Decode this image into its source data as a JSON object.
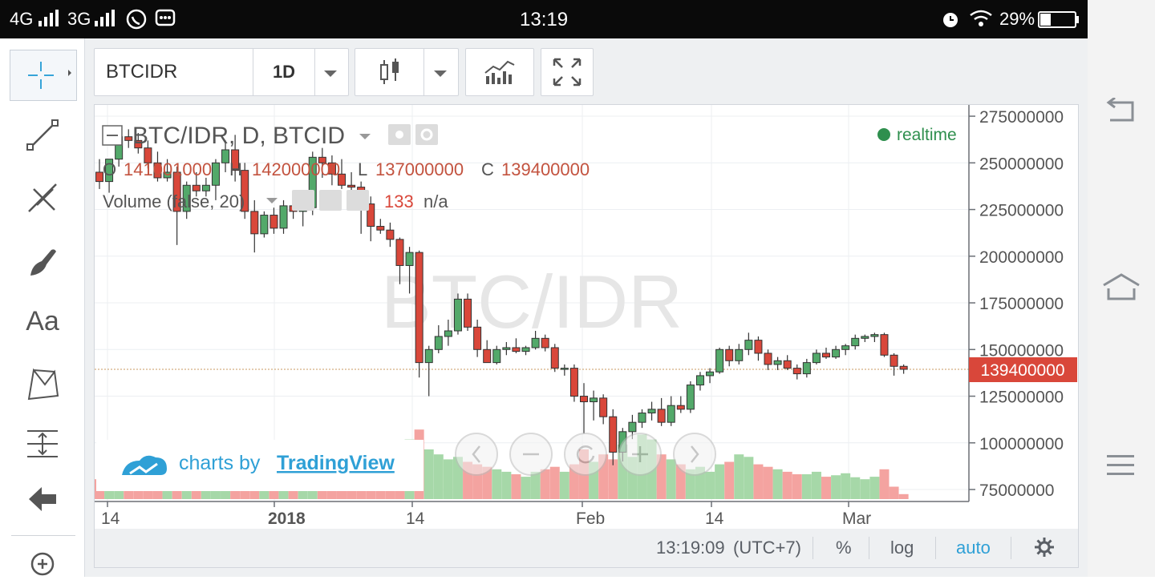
{
  "status_bar": {
    "network1": "4G",
    "network2": "3G",
    "time": "13:19",
    "battery": "29%"
  },
  "toolbar": {
    "symbol": "BTCIDR",
    "interval": "1D"
  },
  "legend": {
    "title": "BTC/IDR, D, BTCID",
    "o_label": "O",
    "o_value": "141001000",
    "h_label": "H",
    "h_value": "142000000",
    "l_label": "L",
    "l_value": "137000000",
    "c_label": "C",
    "c_value": "139400000",
    "volume_label": "Volume (false, 20)",
    "volume_value": "133",
    "volume_na": "n/a",
    "realtime": "realtime"
  },
  "watermark": "BTC/IDR",
  "branding": {
    "prefix": "charts by",
    "name": "TradingView"
  },
  "price_axis": {
    "ticks": [
      "275000000",
      "250000000",
      "225000000",
      "200000000",
      "175000000",
      "150000000",
      "125000000",
      "100000000",
      "75000000"
    ],
    "current_price": "139400000"
  },
  "time_axis": {
    "labels": [
      "14",
      "2018",
      "14",
      "Feb",
      "14",
      "Mar"
    ]
  },
  "footer": {
    "time": "13:19:09",
    "tz": "(UTC+7)",
    "percent": "%",
    "log": "log",
    "auto": "auto"
  },
  "colors": {
    "up": "#53a96a",
    "down": "#d9473a",
    "up_vol": "#a6d8a8",
    "down_vol": "#f4a3a0",
    "accent": "#2fa0d6"
  },
  "chart_data": {
    "type": "candlestick",
    "title": "BTC/IDR, D, BTCID",
    "ylabel": "",
    "ylim": [
      70000000,
      280000000
    ],
    "candles": [
      {
        "o": 245,
        "h": 252,
        "l": 236,
        "c": 240
      },
      {
        "o": 240,
        "h": 250,
        "l": 234,
        "c": 252
      },
      {
        "o": 252,
        "h": 268,
        "l": 248,
        "c": 264
      },
      {
        "o": 264,
        "h": 268,
        "l": 258,
        "c": 262
      },
      {
        "o": 262,
        "h": 266,
        "l": 255,
        "c": 258
      },
      {
        "o": 258,
        "h": 262,
        "l": 247,
        "c": 250
      },
      {
        "o": 250,
        "h": 256,
        "l": 240,
        "c": 242
      },
      {
        "o": 242,
        "h": 252,
        "l": 240,
        "c": 245
      },
      {
        "o": 245,
        "h": 248,
        "l": 206,
        "c": 224
      },
      {
        "o": 224,
        "h": 240,
        "l": 220,
        "c": 238
      },
      {
        "o": 238,
        "h": 245,
        "l": 232,
        "c": 235
      },
      {
        "o": 235,
        "h": 242,
        "l": 232,
        "c": 238
      },
      {
        "o": 238,
        "h": 252,
        "l": 230,
        "c": 250
      },
      {
        "o": 250,
        "h": 262,
        "l": 245,
        "c": 257
      },
      {
        "o": 257,
        "h": 265,
        "l": 240,
        "c": 246
      },
      {
        "o": 246,
        "h": 250,
        "l": 220,
        "c": 224
      },
      {
        "o": 224,
        "h": 230,
        "l": 202,
        "c": 212
      },
      {
        "o": 212,
        "h": 224,
        "l": 210,
        "c": 222
      },
      {
        "o": 222,
        "h": 226,
        "l": 212,
        "c": 215
      },
      {
        "o": 215,
        "h": 230,
        "l": 212,
        "c": 227
      },
      {
        "o": 227,
        "h": 235,
        "l": 220,
        "c": 224
      },
      {
        "o": 224,
        "h": 230,
        "l": 216,
        "c": 226
      },
      {
        "o": 226,
        "h": 256,
        "l": 222,
        "c": 253
      },
      {
        "o": 253,
        "h": 258,
        "l": 242,
        "c": 250
      },
      {
        "o": 250,
        "h": 254,
        "l": 238,
        "c": 244
      },
      {
        "o": 244,
        "h": 252,
        "l": 236,
        "c": 238
      },
      {
        "o": 238,
        "h": 245,
        "l": 232,
        "c": 237
      },
      {
        "o": 237,
        "h": 240,
        "l": 212,
        "c": 228
      },
      {
        "o": 228,
        "h": 232,
        "l": 208,
        "c": 216
      },
      {
        "o": 216,
        "h": 220,
        "l": 212,
        "c": 214
      },
      {
        "o": 214,
        "h": 218,
        "l": 205,
        "c": 209
      },
      {
        "o": 209,
        "h": 210,
        "l": 185,
        "c": 195
      },
      {
        "o": 195,
        "h": 205,
        "l": 180,
        "c": 202
      },
      {
        "o": 202,
        "h": 203,
        "l": 135,
        "c": 143
      },
      {
        "o": 143,
        "h": 152,
        "l": 125,
        "c": 150
      },
      {
        "o": 150,
        "h": 163,
        "l": 148,
        "c": 157
      },
      {
        "o": 157,
        "h": 166,
        "l": 152,
        "c": 160
      },
      {
        "o": 160,
        "h": 180,
        "l": 158,
        "c": 177
      },
      {
        "o": 177,
        "h": 180,
        "l": 160,
        "c": 162
      },
      {
        "o": 162,
        "h": 166,
        "l": 146,
        "c": 150
      },
      {
        "o": 150,
        "h": 155,
        "l": 143,
        "c": 143
      },
      {
        "o": 143,
        "h": 152,
        "l": 142,
        "c": 150
      },
      {
        "o": 150,
        "h": 154,
        "l": 147,
        "c": 151
      },
      {
        "o": 151,
        "h": 156,
        "l": 148,
        "c": 149
      },
      {
        "o": 149,
        "h": 152,
        "l": 147,
        "c": 151
      },
      {
        "o": 151,
        "h": 160,
        "l": 150,
        "c": 156
      },
      {
        "o": 156,
        "h": 158,
        "l": 149,
        "c": 151
      },
      {
        "o": 151,
        "h": 153,
        "l": 138,
        "c": 140
      },
      {
        "o": 140,
        "h": 142,
        "l": 136,
        "c": 140
      },
      {
        "o": 140,
        "h": 142,
        "l": 122,
        "c": 125
      },
      {
        "o": 125,
        "h": 132,
        "l": 105,
        "c": 122
      },
      {
        "o": 122,
        "h": 128,
        "l": 112,
        "c": 124
      },
      {
        "o": 124,
        "h": 126,
        "l": 110,
        "c": 114
      },
      {
        "o": 114,
        "h": 118,
        "l": 88,
        "c": 95
      },
      {
        "o": 95,
        "h": 108,
        "l": 90,
        "c": 106
      },
      {
        "o": 106,
        "h": 115,
        "l": 102,
        "c": 111
      },
      {
        "o": 111,
        "h": 118,
        "l": 108,
        "c": 116
      },
      {
        "o": 116,
        "h": 122,
        "l": 112,
        "c": 118
      },
      {
        "o": 118,
        "h": 124,
        "l": 109,
        "c": 111
      },
      {
        "o": 111,
        "h": 125,
        "l": 109,
        "c": 120
      },
      {
        "o": 120,
        "h": 125,
        "l": 116,
        "c": 118
      },
      {
        "o": 118,
        "h": 133,
        "l": 116,
        "c": 131
      },
      {
        "o": 131,
        "h": 138,
        "l": 128,
        "c": 136
      },
      {
        "o": 136,
        "h": 140,
        "l": 132,
        "c": 138
      },
      {
        "o": 138,
        "h": 151,
        "l": 137,
        "c": 150
      },
      {
        "o": 150,
        "h": 152,
        "l": 141,
        "c": 144
      },
      {
        "o": 144,
        "h": 153,
        "l": 142,
        "c": 150
      },
      {
        "o": 150,
        "h": 159,
        "l": 147,
        "c": 155
      },
      {
        "o": 155,
        "h": 157,
        "l": 144,
        "c": 148
      },
      {
        "o": 148,
        "h": 150,
        "l": 139,
        "c": 142
      },
      {
        "o": 142,
        "h": 146,
        "l": 139,
        "c": 144
      },
      {
        "o": 144,
        "h": 147,
        "l": 139,
        "c": 140
      },
      {
        "o": 140,
        "h": 142,
        "l": 134,
        "c": 137
      },
      {
        "o": 137,
        "h": 145,
        "l": 135,
        "c": 143
      },
      {
        "o": 143,
        "h": 150,
        "l": 142,
        "c": 148
      },
      {
        "o": 148,
        "h": 151,
        "l": 145,
        "c": 146
      },
      {
        "o": 146,
        "h": 152,
        "l": 145,
        "c": 150
      },
      {
        "o": 150,
        "h": 153,
        "l": 147,
        "c": 152
      },
      {
        "o": 152,
        "h": 158,
        "l": 150,
        "c": 156
      },
      {
        "o": 156,
        "h": 158,
        "l": 154,
        "c": 157
      },
      {
        "o": 157,
        "h": 159,
        "l": 154,
        "c": 158
      },
      {
        "o": 158,
        "h": 159,
        "l": 146,
        "c": 147
      },
      {
        "o": 147,
        "h": 148,
        "l": 136,
        "c": 141
      },
      {
        "o": 141,
        "h": 142,
        "l": 137,
        "c": 139.4
      }
    ],
    "volume": [
      40,
      35,
      30,
      25,
      28,
      30,
      35,
      20,
      60,
      40,
      30,
      35,
      30,
      45,
      55,
      30,
      25,
      20,
      22,
      25,
      30,
      20,
      25,
      35,
      30,
      28,
      25,
      20,
      22,
      25,
      30,
      35,
      120,
      140,
      100,
      90,
      80,
      85,
      75,
      70,
      65,
      60,
      55,
      50,
      45,
      55,
      60,
      65,
      55,
      70,
      100,
      75,
      90,
      80,
      110,
      85,
      130,
      120,
      90,
      80,
      70,
      60,
      65,
      55,
      70,
      75,
      90,
      85,
      70,
      65,
      60,
      55,
      50,
      50,
      55,
      45,
      48,
      52,
      44,
      40,
      45,
      60,
      25,
      10
    ]
  }
}
